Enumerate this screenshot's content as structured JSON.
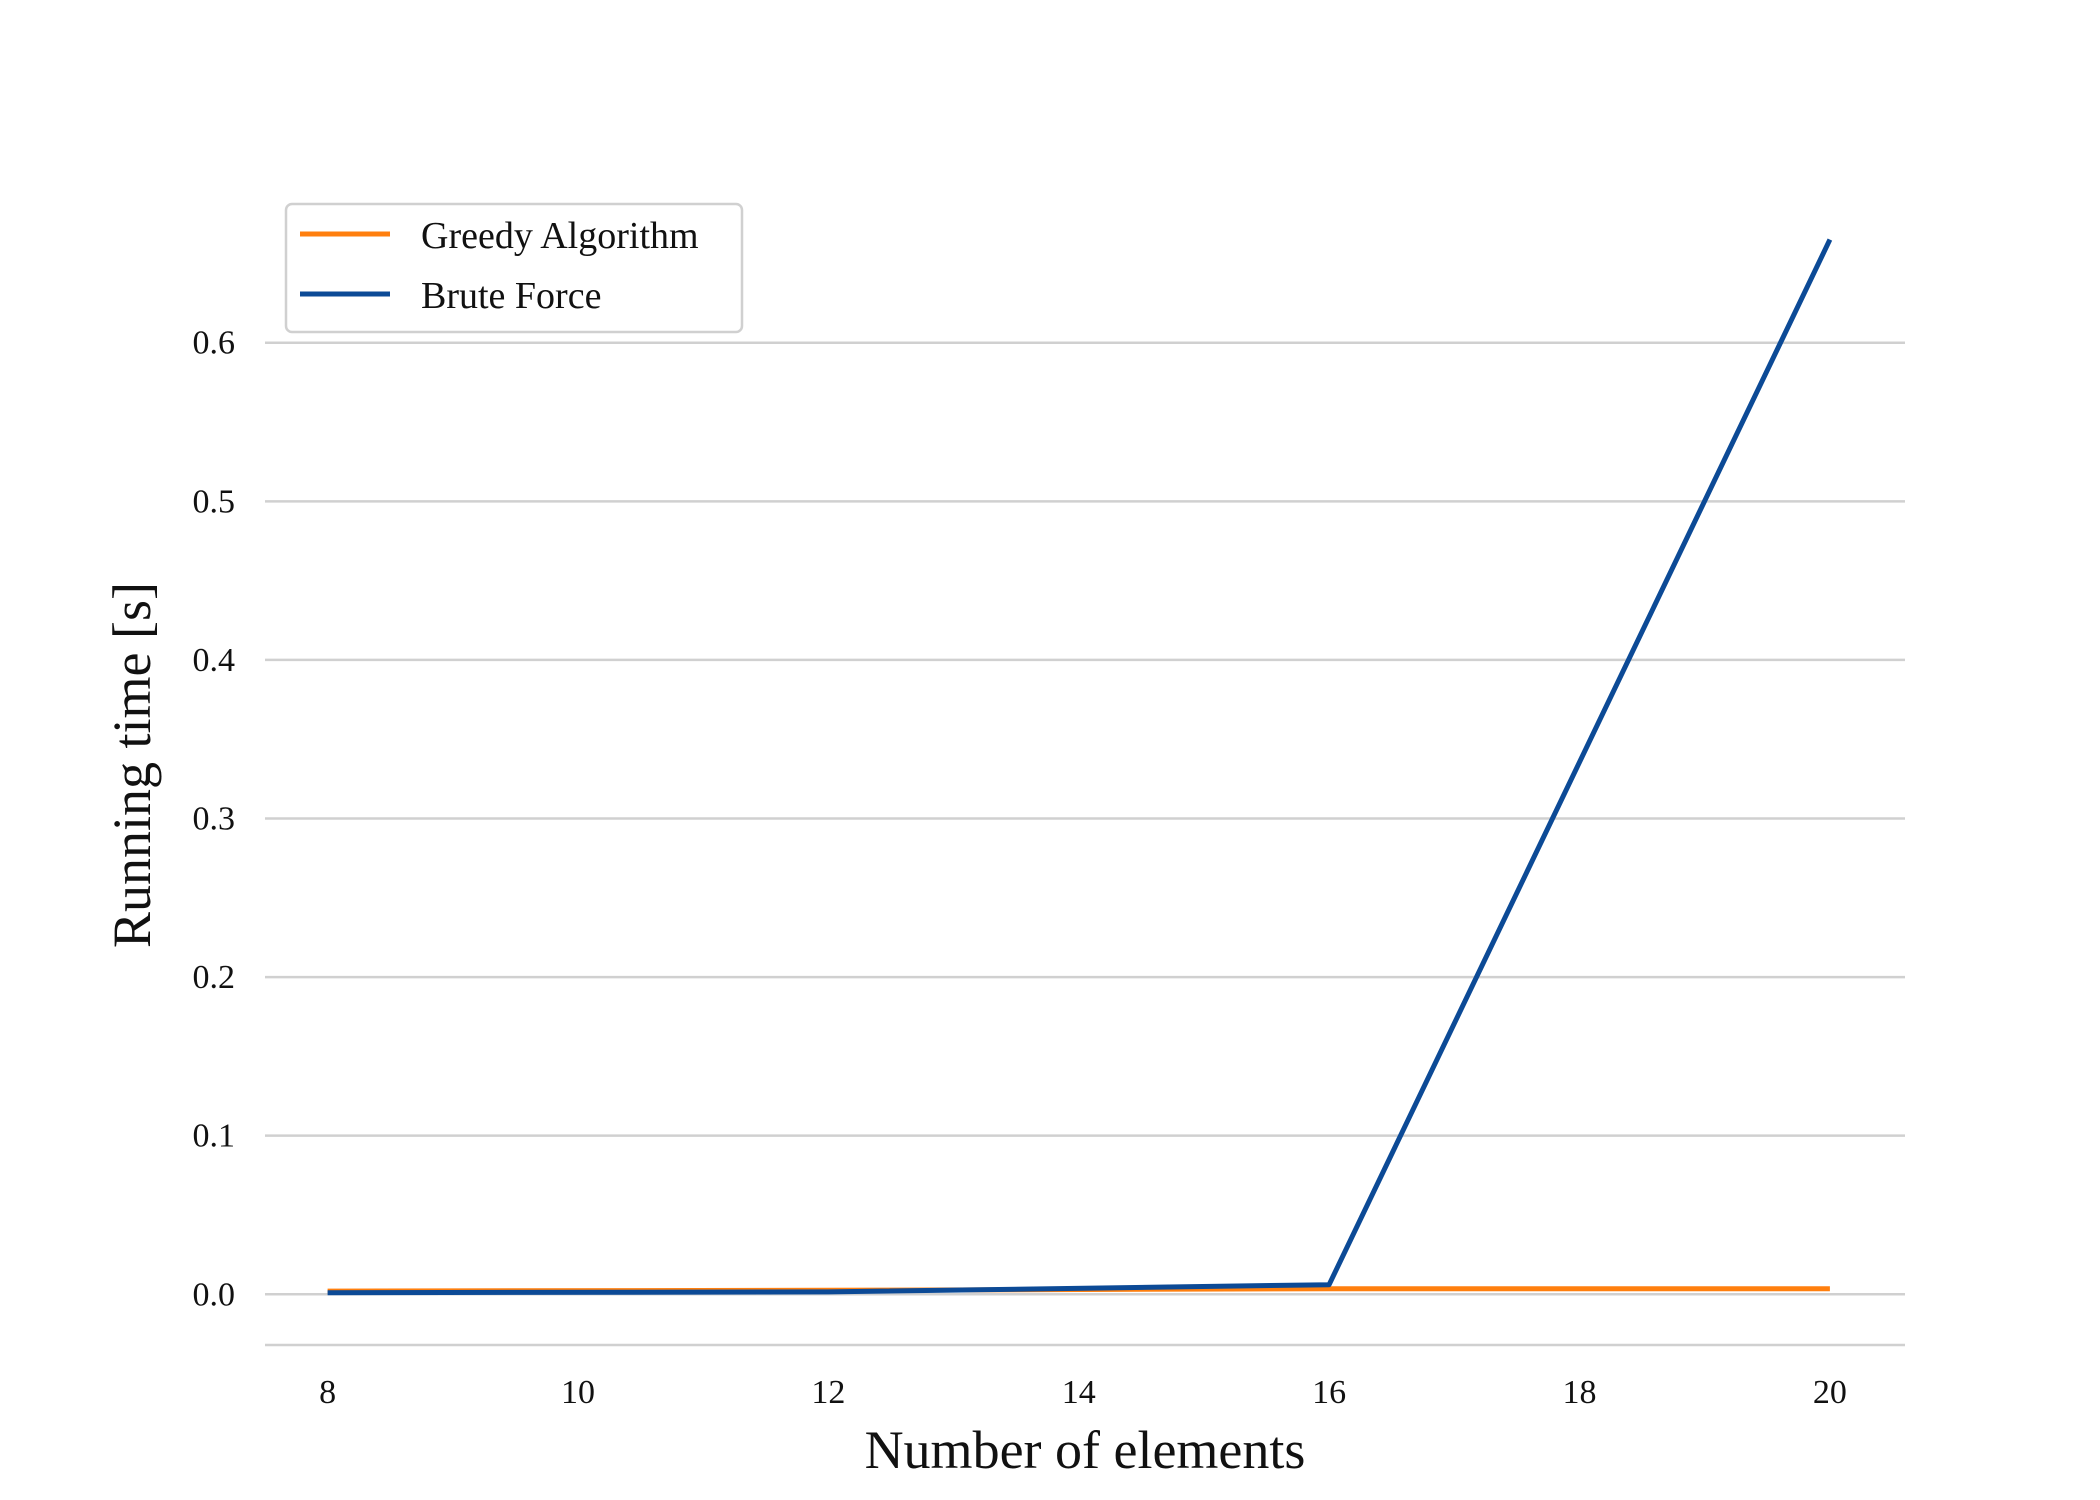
{
  "chart_data": {
    "type": "line",
    "title": "",
    "xlabel": "Number of elements",
    "ylabel": "Running time [s]",
    "x": [
      8,
      12,
      16,
      20
    ],
    "xticks": [
      "8",
      "10",
      "12",
      "14",
      "16",
      "18",
      "20"
    ],
    "xtick_values": [
      8,
      10,
      12,
      14,
      16,
      18,
      20
    ],
    "yticks": [
      "0.0",
      "0.1",
      "0.2",
      "0.3",
      "0.4",
      "0.5",
      "0.6"
    ],
    "ytick_values": [
      0.0,
      0.1,
      0.2,
      0.3,
      0.4,
      0.5,
      0.6
    ],
    "xlim": [
      7.5,
      20.6
    ],
    "ylim": [
      -0.032,
      0.69
    ],
    "grid": "horizontal",
    "legend_position": "top-left",
    "series": [
      {
        "name": "Greedy Algorithm",
        "color": "#ff7f0e",
        "values": [
          0.002,
          0.0025,
          0.0035,
          0.0035
        ]
      },
      {
        "name": "Brute Force",
        "color": "#0c4a96",
        "values": [
          0.001,
          0.0015,
          0.006,
          0.665
        ]
      }
    ]
  }
}
